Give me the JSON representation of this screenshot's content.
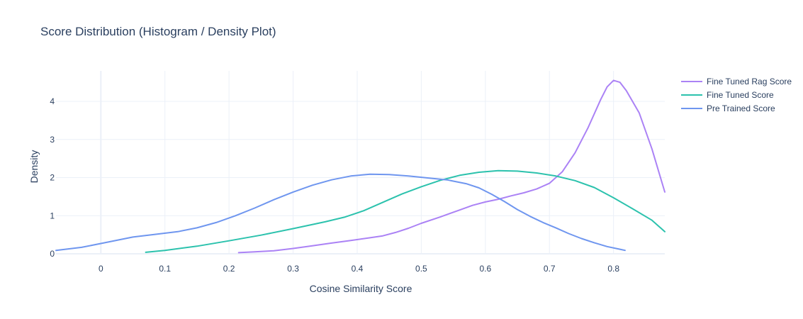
{
  "chart_data": {
    "type": "line",
    "title": "Score Distribution (Histogram / Density Plot)",
    "xlabel": "Cosine Similarity Score",
    "ylabel": "Density",
    "xlim": [
      -0.07,
      0.88
    ],
    "ylim": [
      0,
      4.8
    ],
    "x_ticks": [
      0,
      0.1,
      0.2,
      0.3,
      0.4,
      0.5,
      0.6,
      0.7,
      0.8
    ],
    "x_tick_labels": [
      "0",
      "0.1",
      "0.2",
      "0.3",
      "0.4",
      "0.5",
      "0.6",
      "0.7",
      "0.8"
    ],
    "y_ticks": [
      0,
      1,
      2,
      3,
      4
    ],
    "y_tick_labels": [
      "0",
      "1",
      "2",
      "3",
      "4"
    ],
    "grid": true,
    "legend_position": "top-right",
    "series": [
      {
        "name": "Fine Tuned Rag Score",
        "color": "#ab82f5",
        "points": [
          [
            0.215,
            0.03
          ],
          [
            0.24,
            0.05
          ],
          [
            0.27,
            0.08
          ],
          [
            0.3,
            0.14
          ],
          [
            0.33,
            0.21
          ],
          [
            0.36,
            0.28
          ],
          [
            0.39,
            0.35
          ],
          [
            0.42,
            0.42
          ],
          [
            0.44,
            0.47
          ],
          [
            0.46,
            0.56
          ],
          [
            0.48,
            0.67
          ],
          [
            0.5,
            0.8
          ],
          [
            0.53,
            0.97
          ],
          [
            0.56,
            1.15
          ],
          [
            0.58,
            1.27
          ],
          [
            0.6,
            1.36
          ],
          [
            0.62,
            1.43
          ],
          [
            0.64,
            1.52
          ],
          [
            0.66,
            1.6
          ],
          [
            0.68,
            1.7
          ],
          [
            0.7,
            1.85
          ],
          [
            0.72,
            2.15
          ],
          [
            0.74,
            2.65
          ],
          [
            0.76,
            3.3
          ],
          [
            0.78,
            4.05
          ],
          [
            0.79,
            4.38
          ],
          [
            0.8,
            4.55
          ],
          [
            0.81,
            4.5
          ],
          [
            0.82,
            4.28
          ],
          [
            0.84,
            3.7
          ],
          [
            0.86,
            2.75
          ],
          [
            0.88,
            1.62
          ]
        ]
      },
      {
        "name": "Fine Tuned Score",
        "color": "#2cc2ad",
        "points": [
          [
            0.07,
            0.04
          ],
          [
            0.1,
            0.09
          ],
          [
            0.15,
            0.2
          ],
          [
            0.2,
            0.34
          ],
          [
            0.25,
            0.49
          ],
          [
            0.3,
            0.66
          ],
          [
            0.35,
            0.84
          ],
          [
            0.38,
            0.96
          ],
          [
            0.41,
            1.13
          ],
          [
            0.44,
            1.35
          ],
          [
            0.47,
            1.57
          ],
          [
            0.5,
            1.76
          ],
          [
            0.53,
            1.93
          ],
          [
            0.56,
            2.06
          ],
          [
            0.59,
            2.14
          ],
          [
            0.62,
            2.18
          ],
          [
            0.65,
            2.17
          ],
          [
            0.68,
            2.12
          ],
          [
            0.71,
            2.04
          ],
          [
            0.74,
            1.92
          ],
          [
            0.77,
            1.74
          ],
          [
            0.8,
            1.47
          ],
          [
            0.83,
            1.18
          ],
          [
            0.86,
            0.88
          ],
          [
            0.88,
            0.58
          ]
        ]
      },
      {
        "name": "Pre Trained Score",
        "color": "#6f96ef",
        "points": [
          [
            -0.07,
            0.09
          ],
          [
            -0.03,
            0.17
          ],
          [
            0.0,
            0.27
          ],
          [
            0.05,
            0.44
          ],
          [
            0.08,
            0.5
          ],
          [
            0.12,
            0.58
          ],
          [
            0.15,
            0.68
          ],
          [
            0.18,
            0.82
          ],
          [
            0.21,
            1.0
          ],
          [
            0.24,
            1.2
          ],
          [
            0.27,
            1.42
          ],
          [
            0.3,
            1.62
          ],
          [
            0.33,
            1.8
          ],
          [
            0.36,
            1.94
          ],
          [
            0.39,
            2.04
          ],
          [
            0.42,
            2.09
          ],
          [
            0.45,
            2.08
          ],
          [
            0.48,
            2.04
          ],
          [
            0.51,
            1.99
          ],
          [
            0.54,
            1.94
          ],
          [
            0.57,
            1.84
          ],
          [
            0.59,
            1.73
          ],
          [
            0.61,
            1.56
          ],
          [
            0.63,
            1.37
          ],
          [
            0.65,
            1.16
          ],
          [
            0.67,
            0.98
          ],
          [
            0.69,
            0.82
          ],
          [
            0.71,
            0.68
          ],
          [
            0.73,
            0.53
          ],
          [
            0.75,
            0.4
          ],
          [
            0.77,
            0.29
          ],
          [
            0.79,
            0.19
          ],
          [
            0.81,
            0.12
          ],
          [
            0.818,
            0.09
          ]
        ]
      }
    ]
  }
}
